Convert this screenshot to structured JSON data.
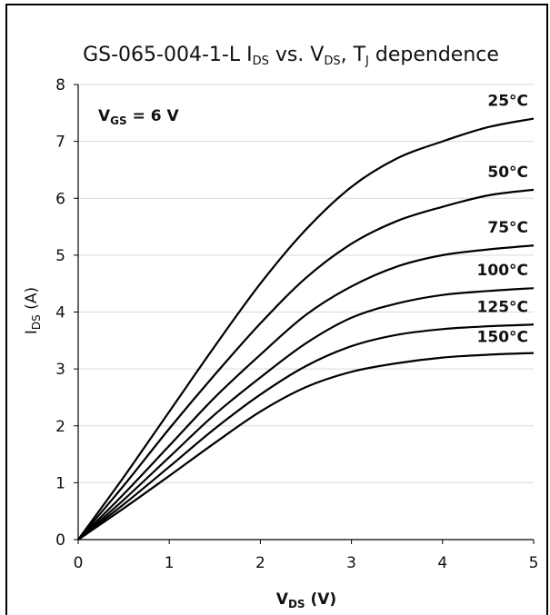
{
  "chart_data": {
    "type": "line",
    "title_parts": [
      "GS-065-004-1-L I",
      "DS",
      " vs. V",
      "DS",
      ", T",
      "J",
      " dependence"
    ],
    "xlabel_main": "V",
    "xlabel_sub": "DS",
    "xlabel_unit": " (V)",
    "ylabel_main": "I",
    "ylabel_sub": "DS",
    "ylabel_unit": " (A)",
    "annotation_main": "V",
    "annotation_sub": "GS",
    "annotation_rest": " = 6 V",
    "xlim": [
      0,
      5
    ],
    "ylim": [
      0,
      8
    ],
    "xticks": [
      "0",
      "1",
      "2",
      "3",
      "4",
      "5"
    ],
    "yticks": [
      "0",
      "1",
      "2",
      "3",
      "4",
      "5",
      "6",
      "7",
      "8"
    ],
    "grid": true,
    "line_color": "#000000",
    "grid_color": "#d9d9d9",
    "x": [
      0,
      0.5,
      1,
      1.5,
      2,
      2.5,
      3,
      3.5,
      4,
      4.5,
      5
    ],
    "series": [
      {
        "name": "25°C",
        "values": [
          0,
          1.1,
          2.25,
          3.4,
          4.5,
          5.45,
          6.2,
          6.7,
          7.0,
          7.25,
          7.4
        ]
      },
      {
        "name": "50°C",
        "values": [
          0,
          0.95,
          1.95,
          2.9,
          3.8,
          4.6,
          5.2,
          5.6,
          5.85,
          6.05,
          6.15
        ]
      },
      {
        "name": "75°C",
        "values": [
          0,
          0.8,
          1.65,
          2.5,
          3.25,
          3.95,
          4.45,
          4.8,
          5.0,
          5.1,
          5.17
        ]
      },
      {
        "name": "100°C",
        "values": [
          0,
          0.7,
          1.45,
          2.2,
          2.85,
          3.45,
          3.9,
          4.15,
          4.3,
          4.37,
          4.42
        ]
      },
      {
        "name": "125°C",
        "values": [
          0,
          0.62,
          1.28,
          1.95,
          2.55,
          3.05,
          3.4,
          3.6,
          3.7,
          3.75,
          3.78
        ]
      },
      {
        "name": "150°C",
        "values": [
          0,
          0.55,
          1.12,
          1.7,
          2.25,
          2.68,
          2.95,
          3.1,
          3.2,
          3.25,
          3.28
        ]
      }
    ]
  }
}
